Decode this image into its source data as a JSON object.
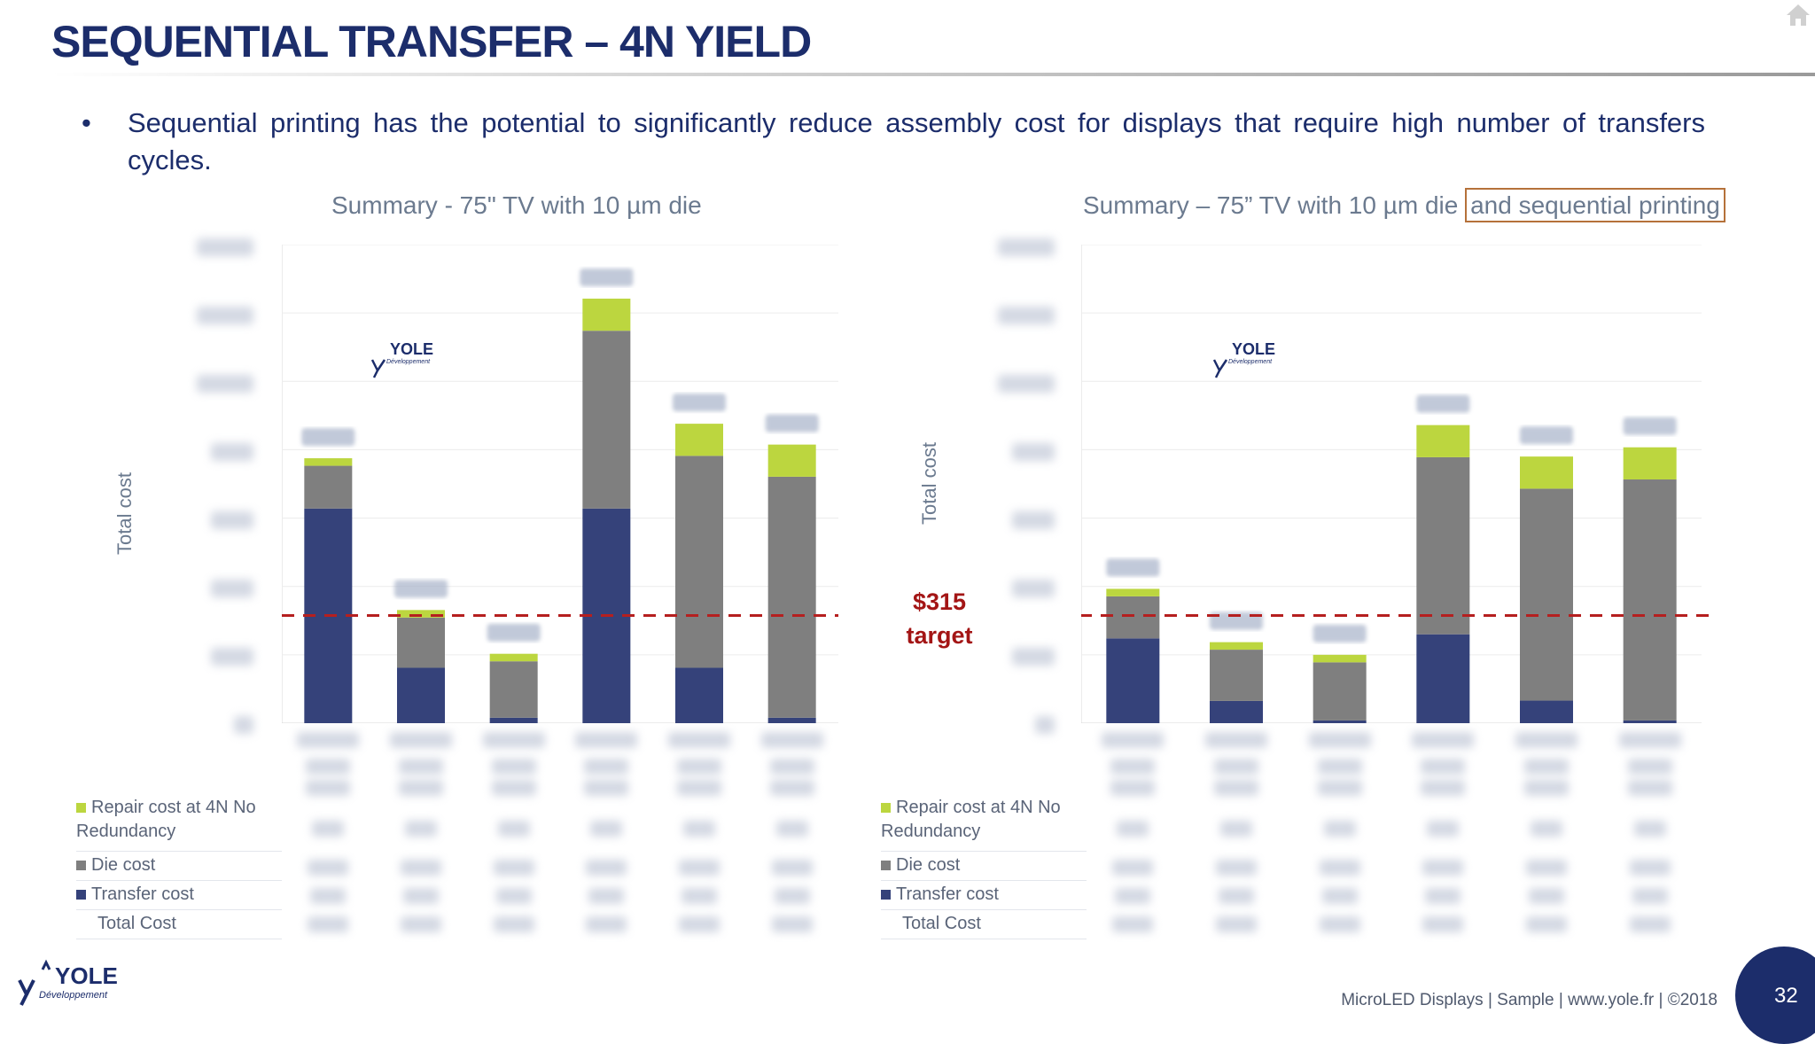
{
  "slide": {
    "title": "SEQUENTIAL TRANSFER – 4N YIELD",
    "bullet_dot": "•",
    "bullet": "Sequential printing has the potential to significantly reduce assembly cost for displays that require high number of transfers cycles.",
    "footer": "MicroLED Displays | Sample | www.yole.fr | ©2018",
    "page_number": "32",
    "logo_name": "YOLE",
    "logo_sub": "Développement"
  },
  "target": {
    "value_label": "$315",
    "label": "target"
  },
  "colors": {
    "repair": "#bcd63f",
    "die": "#7f7f7f",
    "transfer": "#35427a",
    "target_line": "#b51f1f",
    "title": "#1c2d6b"
  },
  "legend": {
    "repair": "Repair cost  at 4N No Redundancy",
    "repair_right": "Repair cost at 4N No Redundancy",
    "die": "Die cost",
    "transfer": "Transfer cost",
    "total": "Total Cost"
  },
  "chart_data": [
    {
      "type": "bar",
      "stacked": true,
      "title": "Summary - 75\" TV with 10 µm die",
      "ylabel": "Total cost",
      "ylim": [
        0,
        1400
      ],
      "categories": [
        "1",
        "2",
        "3",
        "4",
        "5",
        "6"
      ],
      "series": [
        {
          "name": "Transfer cost",
          "values": [
            628,
            162,
            16,
            628,
            162,
            16
          ]
        },
        {
          "name": "Die cost",
          "values": [
            125,
            147,
            165,
            520,
            620,
            705
          ]
        },
        {
          "name": "Repair cost at 4N No Redundancy",
          "values": [
            22,
            22,
            22,
            94,
            94,
            94
          ]
        }
      ],
      "target_line": 315
    },
    {
      "type": "bar",
      "stacked": true,
      "title": "Summary – 75” TV with 10 µm die",
      "title_boxed_part": "and sequential printing",
      "ylabel": "Total cost",
      "ylim": [
        0,
        1400
      ],
      "categories": [
        "1",
        "2",
        "3",
        "4",
        "5",
        "6"
      ],
      "series": [
        {
          "name": "Transfer cost",
          "values": [
            248,
            65,
            8,
            260,
            66,
            8
          ]
        },
        {
          "name": "Die cost",
          "values": [
            123,
            150,
            170,
            518,
            620,
            705
          ]
        },
        {
          "name": "Repair cost at 4N No Redundancy",
          "values": [
            22,
            22,
            22,
            94,
            94,
            94
          ]
        }
      ],
      "target_line": 315
    }
  ]
}
